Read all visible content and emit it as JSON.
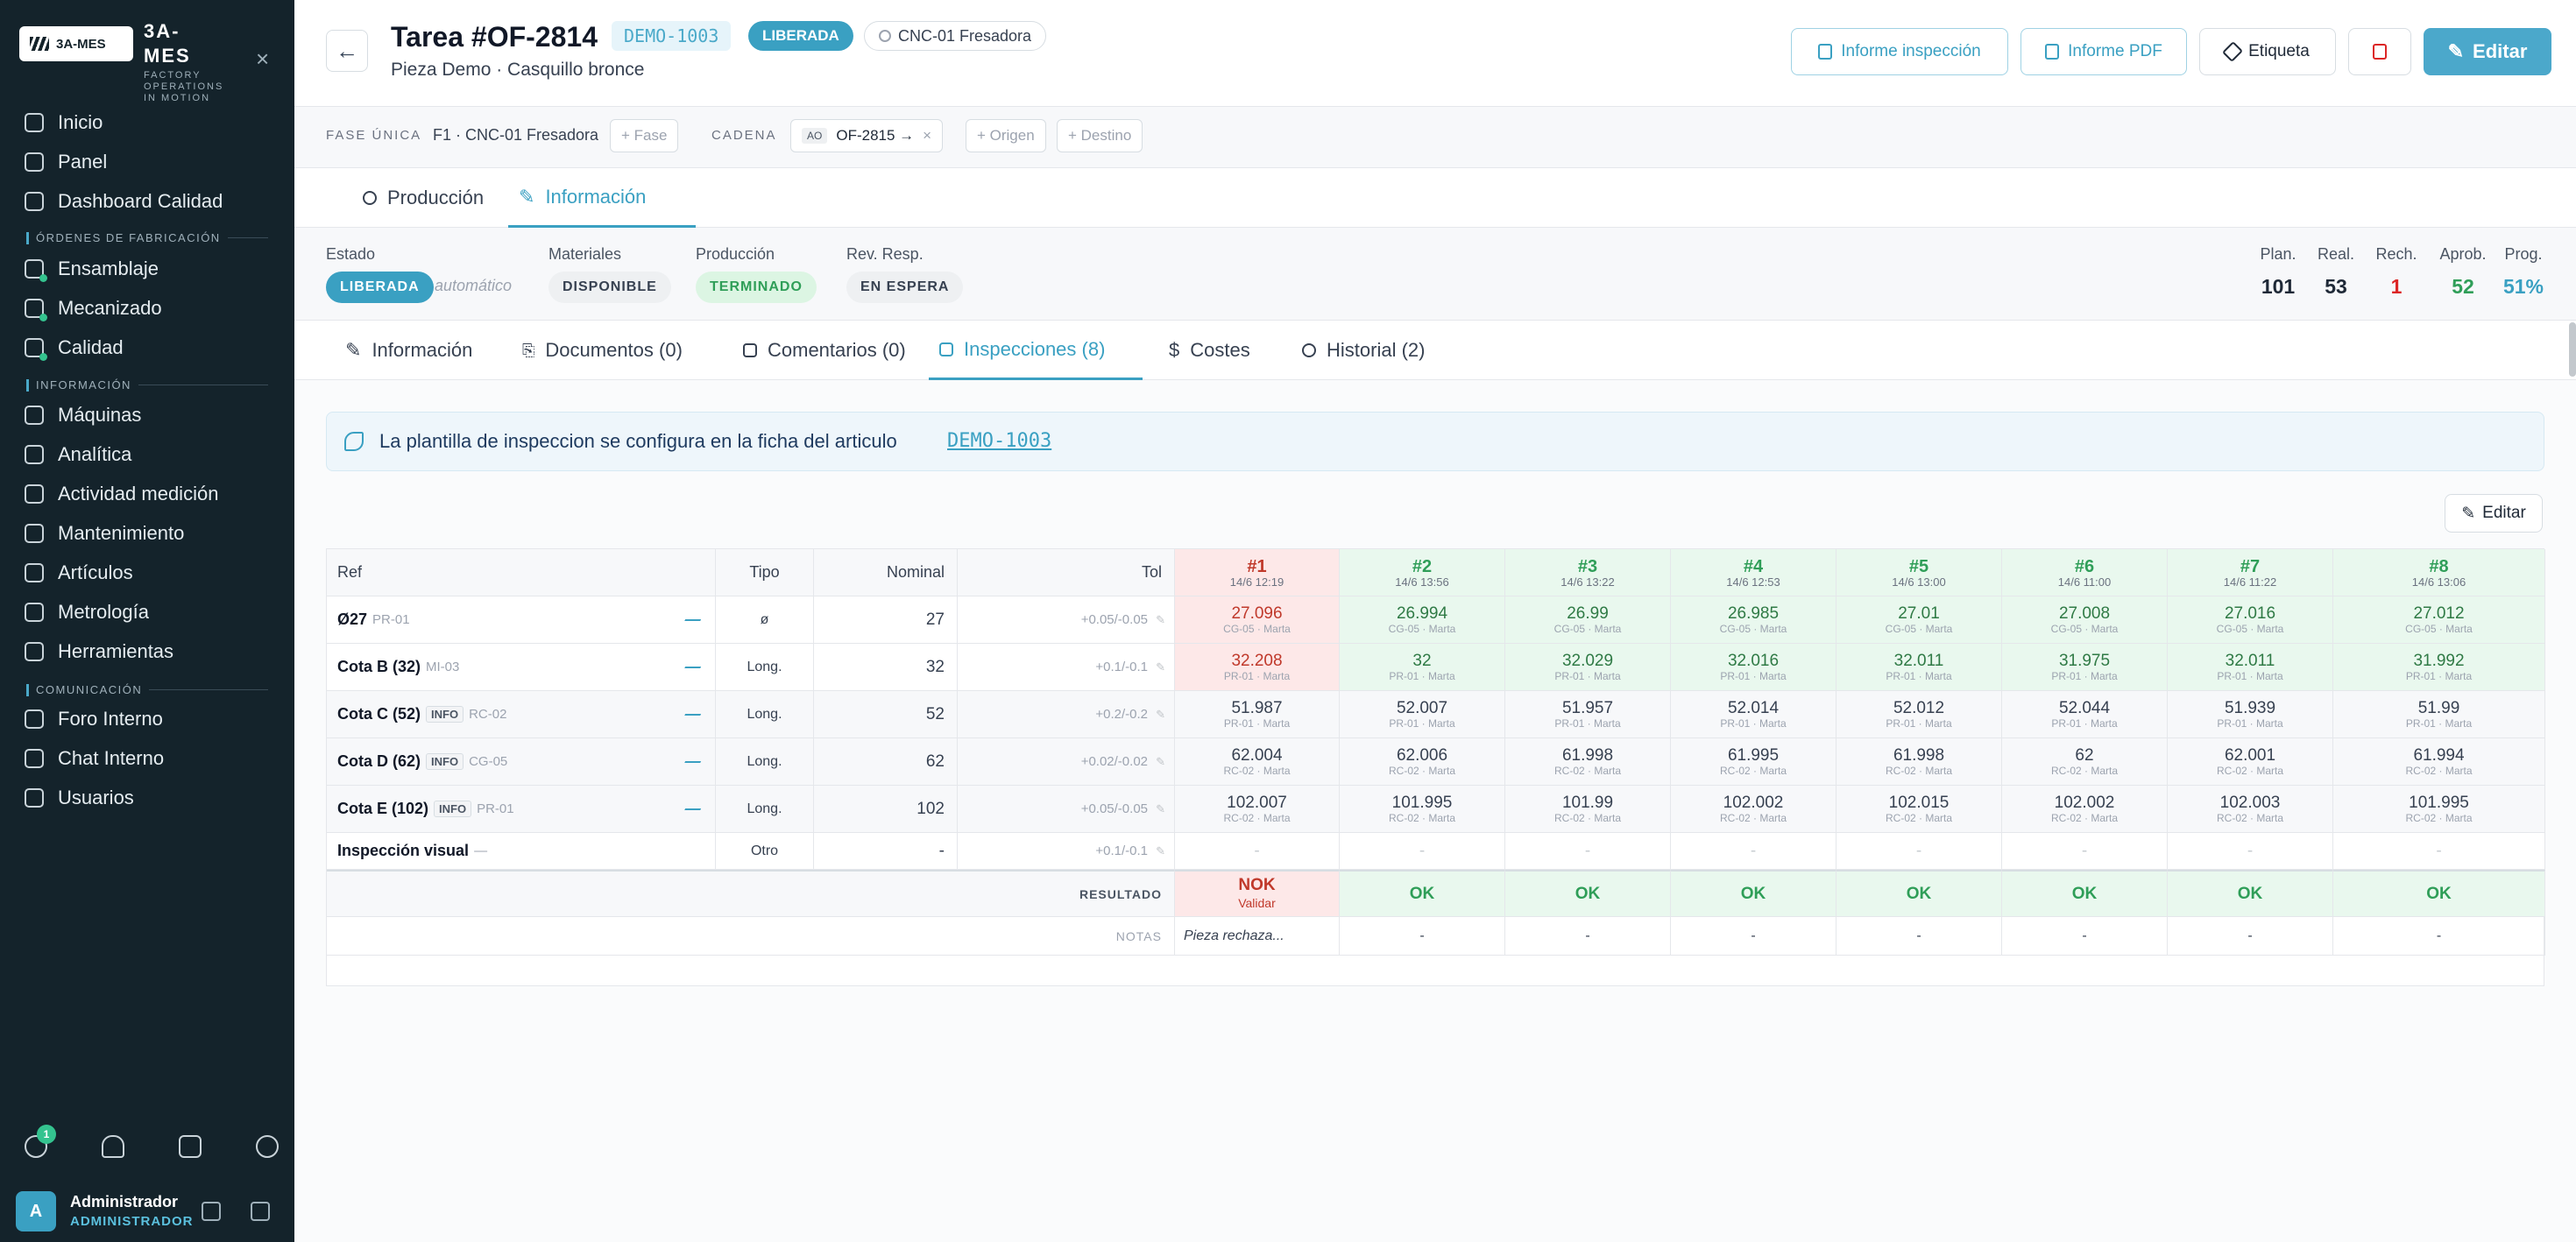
{
  "sidebar": {
    "logo_text": "3A-MES",
    "brand": "3A-\nMES",
    "brand_sub": "FACTORY OPERATIONS IN MOTION",
    "nav_top": [
      {
        "label": "Inicio",
        "icon": "home-icon"
      },
      {
        "label": "Panel",
        "icon": "grid-icon"
      },
      {
        "label": "Dashboard Calidad",
        "icon": "shield-icon"
      }
    ],
    "sec_fab": "ÓRDENES DE FABRICACIÓN",
    "nav_fab": [
      {
        "label": "Ensamblaje",
        "icon": "clipboard-icon"
      },
      {
        "label": "Mecanizado",
        "icon": "clipboard-icon"
      },
      {
        "label": "Calidad",
        "icon": "shield-check-icon"
      }
    ],
    "sec_info": "INFORMACIÓN",
    "nav_info": [
      {
        "label": "Máquinas",
        "icon": "cog-icon"
      },
      {
        "label": "Analítica",
        "icon": "chart-icon"
      },
      {
        "label": "Actividad medición",
        "icon": "activity-icon"
      },
      {
        "label": "Mantenimiento",
        "icon": "wrench-icon"
      },
      {
        "label": "Artículos",
        "icon": "box-icon"
      },
      {
        "label": "Metrología",
        "icon": "ruler-icon"
      },
      {
        "label": "Herramientas",
        "icon": "tools-icon"
      }
    ],
    "sec_com": "COMUNICACIÓN",
    "nav_com": [
      {
        "label": "Foro Interno",
        "icon": "forum-icon"
      },
      {
        "label": "Chat Interno",
        "icon": "chat-icon"
      },
      {
        "label": "Usuarios",
        "icon": "users-icon"
      }
    ],
    "badge_count": "1",
    "user_initial": "A",
    "user_name": "Administrador",
    "user_role": "ADMINISTRADOR"
  },
  "header": {
    "title": "Tarea #OF-2814",
    "code": "DEMO-1003",
    "status": "LIBERADA",
    "machine": "CNC-01 Fresadora",
    "subtitle": "Pieza Demo · Casquillo bronce",
    "btn_inspection": "Informe inspección",
    "btn_pdf": "Informe PDF",
    "btn_label": "Etiqueta",
    "btn_edit": "Editar"
  },
  "chain": {
    "phase_label": "FASE ÚNICA",
    "phase_value": "F1 · CNC-01 Fresadora",
    "add_phase": "+ Fase",
    "chain_label": "CADENA",
    "chain_tag": "AO",
    "chain_value": "OF-2815 →",
    "chain_close": "×",
    "add_origin": "+ Origen",
    "add_dest": "+ Destino"
  },
  "tabs_main": [
    "Producción",
    "Información"
  ],
  "status": {
    "estado_label": "Estado",
    "estado_value": "LIBERADA",
    "estado_auto": "automático",
    "materiales_label": "Materiales",
    "materiales_value": "DISPONIBLE",
    "produccion_label": "Producción",
    "produccion_value": "TERMINADO",
    "rev_label": "Rev. Resp.",
    "rev_value": "EN ESPERA",
    "kpis": [
      {
        "label": "Plan.",
        "value": "101",
        "color": "#1f2937"
      },
      {
        "label": "Real.",
        "value": "53",
        "color": "#1f2937"
      },
      {
        "label": "Rech.",
        "value": "1",
        "color": "#dc2626"
      },
      {
        "label": "Aprob.",
        "value": "52",
        "color": "#2f9e58"
      },
      {
        "label": "Prog.",
        "value": "51%",
        "color": "#3aa0c2"
      }
    ]
  },
  "tabs_sub": [
    "Información",
    "Documentos (0)",
    "Comentarios (0)",
    "Inspecciones (8)",
    "Costes",
    "Historial (2)"
  ],
  "info_banner": {
    "text": "La plantilla de inspeccion se configura en la ficha del articulo",
    "link": "DEMO-1003"
  },
  "edit_small": "Editar",
  "table": {
    "headers": {
      "ref": "Ref",
      "tipo": "Tipo",
      "nominal": "Nominal",
      "tol": "Tol"
    },
    "samples": [
      {
        "n": "#1",
        "d": "14/6 12:19"
      },
      {
        "n": "#2",
        "d": "14/6 13:56"
      },
      {
        "n": "#3",
        "d": "14/6 13:22"
      },
      {
        "n": "#4",
        "d": "14/6 12:53"
      },
      {
        "n": "#5",
        "d": "14/6 13:00"
      },
      {
        "n": "#6",
        "d": "14/6 11:00"
      },
      {
        "n": "#7",
        "d": "14/6 11:22"
      },
      {
        "n": "#8",
        "d": "14/6 13:06"
      }
    ],
    "rows": [
      {
        "name": "Ø27",
        "code": "PR-01",
        "info": "",
        "tipo": "ø",
        "nominal": "27",
        "tol": "+0.05/-0.05",
        "v": [
          "27.096",
          "26.994",
          "26.99",
          "26.985",
          "27.01",
          "27.008",
          "27.016",
          "27.012"
        ],
        "s": [
          "CG-05 · Marta",
          "CG-05 · Marta",
          "CG-05 · Marta",
          "CG-05 · Marta",
          "CG-05 · Marta",
          "CG-05 · Marta",
          "CG-05 · Marta",
          "CG-05 · Marta"
        ],
        "st": [
          "nok",
          "ok",
          "ok",
          "ok",
          "ok",
          "ok",
          "ok",
          "ok"
        ]
      },
      {
        "name": "Cota B (32)",
        "code": "MI-03",
        "info": "",
        "tipo": "Long.",
        "nominal": "32",
        "tol": "+0.1/-0.1",
        "v": [
          "32.208",
          "32",
          "32.029",
          "32.016",
          "32.011",
          "31.975",
          "32.011",
          "31.992"
        ],
        "s": [
          "PR-01 · Marta",
          "PR-01 · Marta",
          "PR-01 · Marta",
          "PR-01 · Marta",
          "PR-01 · Marta",
          "PR-01 · Marta",
          "PR-01 · Marta",
          "PR-01 · Marta"
        ],
        "st": [
          "nok",
          "ok",
          "ok",
          "ok",
          "ok",
          "ok",
          "ok",
          "ok"
        ]
      },
      {
        "name": "Cota C (52)",
        "code": "RC-02",
        "info": "INFO",
        "tipo": "Long.",
        "nominal": "52",
        "tol": "+0.2/-0.2",
        "v": [
          "51.987",
          "52.007",
          "51.957",
          "52.014",
          "52.012",
          "52.044",
          "51.939",
          "51.99"
        ],
        "s": [
          "PR-01 · Marta",
          "PR-01 · Marta",
          "PR-01 · Marta",
          "PR-01 · Marta",
          "PR-01 · Marta",
          "PR-01 · Marta",
          "PR-01 · Marta",
          "PR-01 · Marta"
        ],
        "st": [
          "",
          "",
          "",
          "",
          "",
          "",
          "",
          ""
        ]
      },
      {
        "name": "Cota D (62)",
        "code": "CG-05",
        "info": "INFO",
        "tipo": "Long.",
        "nominal": "62",
        "tol": "+0.02/-0.02",
        "v": [
          "62.004",
          "62.006",
          "61.998",
          "61.995",
          "61.998",
          "62",
          "62.001",
          "61.994"
        ],
        "s": [
          "RC-02 · Marta",
          "RC-02 · Marta",
          "RC-02 · Marta",
          "RC-02 · Marta",
          "RC-02 · Marta",
          "RC-02 · Marta",
          "RC-02 · Marta",
          "RC-02 · Marta"
        ],
        "st": [
          "",
          "",
          "",
          "",
          "",
          "",
          "",
          ""
        ]
      },
      {
        "name": "Cota E (102)",
        "code": "PR-01",
        "info": "INFO",
        "tipo": "Long.",
        "nominal": "102",
        "tol": "+0.05/-0.05",
        "v": [
          "102.007",
          "101.995",
          "101.99",
          "102.002",
          "102.015",
          "102.002",
          "102.003",
          "101.995"
        ],
        "s": [
          "RC-02 · Marta",
          "RC-02 · Marta",
          "RC-02 · Marta",
          "RC-02 · Marta",
          "RC-02 · Marta",
          "RC-02 · Marta",
          "RC-02 · Marta",
          "RC-02 · Marta"
        ],
        "st": [
          "",
          "",
          "",
          "",
          "",
          "",
          "",
          ""
        ]
      },
      {
        "name": "Inspección visual",
        "code": "—",
        "info": "",
        "tipo": "Otro",
        "nominal": "-",
        "tol": "+0.1/-0.1",
        "v": [
          "-",
          "-",
          "-",
          "-",
          "-",
          "-",
          "-",
          "-"
        ],
        "s": [
          "",
          "",
          "",
          "",
          "",
          "",
          "",
          ""
        ],
        "st": [
          "",
          "",
          "",
          "",
          "",
          "",
          "",
          ""
        ]
      }
    ],
    "result_label": "RESULTADO",
    "results": [
      "NOK",
      "OK",
      "OK",
      "OK",
      "OK",
      "OK",
      "OK",
      "OK"
    ],
    "validate": "Validar",
    "notes_label": "NOTAS",
    "notes": [
      "Pieza rechaza...",
      "-",
      "-",
      "-",
      "-",
      "-",
      "-",
      "-"
    ]
  },
  "colors": {
    "accent": "#3aa0c2",
    "sidebar": "#14232b",
    "ok": "#2f9e58",
    "nok": "#c0392b"
  }
}
